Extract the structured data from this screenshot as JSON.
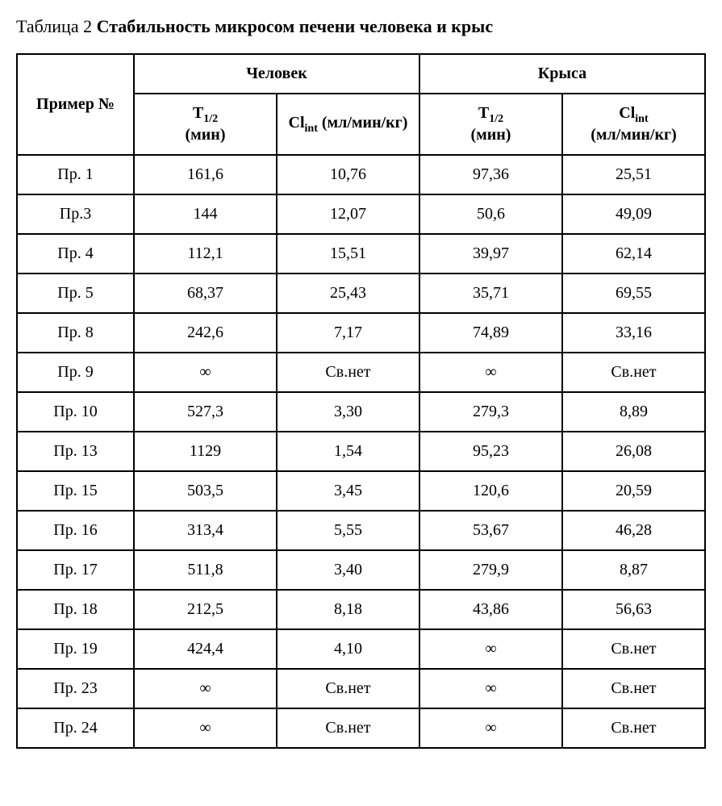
{
  "title": {
    "prefix": "Таблица 2 ",
    "main": "Стабильность микросом печени человека и крыс"
  },
  "headers": {
    "example": "Пример №",
    "human": "Человек",
    "rat": "Крыса",
    "t_half_prefix": "T",
    "t_half_sub": "1/2",
    "t_half_unit": "(мин)",
    "cl_prefix": "Cl",
    "cl_sub": "int",
    "cl_unit": " (мл/мин/кг)",
    "cl_unit_break": "(мл/мин/кг)"
  },
  "rows": [
    {
      "example": "Пр. 1",
      "human_t": "161,6",
      "human_cl": "10,76",
      "rat_t": "97,36",
      "rat_cl": "25,51"
    },
    {
      "example": "Пр.3",
      "human_t": "144",
      "human_cl": "12,07",
      "rat_t": "50,6",
      "rat_cl": "49,09"
    },
    {
      "example": "Пр. 4",
      "human_t": "112,1",
      "human_cl": "15,51",
      "rat_t": "39,97",
      "rat_cl": "62,14"
    },
    {
      "example": "Пр. 5",
      "human_t": "68,37",
      "human_cl": "25,43",
      "rat_t": "35,71",
      "rat_cl": "69,55"
    },
    {
      "example": "Пр. 8",
      "human_t": "242,6",
      "human_cl": "7,17",
      "rat_t": "74,89",
      "rat_cl": "33,16"
    },
    {
      "example": "Пр. 9",
      "human_t": "∞",
      "human_cl": "Св.нет",
      "rat_t": "∞",
      "rat_cl": "Св.нет"
    },
    {
      "example": "Пр. 10",
      "human_t": "527,3",
      "human_cl": "3,30",
      "rat_t": "279,3",
      "rat_cl": "8,89"
    },
    {
      "example": "Пр.  13",
      "human_t": "1129",
      "human_cl": "1,54",
      "rat_t": "95,23",
      "rat_cl": "26,08"
    },
    {
      "example": "Пр.  15",
      "human_t": "503,5",
      "human_cl": "3,45",
      "rat_t": "120,6",
      "rat_cl": "20,59"
    },
    {
      "example": "Пр.  16",
      "human_t": "313,4",
      "human_cl": "5,55",
      "rat_t": "53,67",
      "rat_cl": "46,28"
    },
    {
      "example": "Пр.  17",
      "human_t": "511,8",
      "human_cl": "3,40",
      "rat_t": "279,9",
      "rat_cl": "8,87"
    },
    {
      "example": "Пр.  18",
      "human_t": "212,5",
      "human_cl": "8,18",
      "rat_t": "43,86",
      "rat_cl": "56,63"
    },
    {
      "example": "Пр.  19",
      "human_t": "424,4",
      "human_cl": "4,10",
      "rat_t": "∞",
      "rat_cl": "Св.нет"
    },
    {
      "example": "Пр. 23",
      "human_t": "∞",
      "human_cl": "Св.нет",
      "rat_t": "∞",
      "rat_cl": "Св.нет"
    },
    {
      "example": "Пр. 24",
      "human_t": "∞",
      "human_cl": "Св.нет",
      "rat_t": "∞",
      "rat_cl": "Св.нет"
    }
  ]
}
